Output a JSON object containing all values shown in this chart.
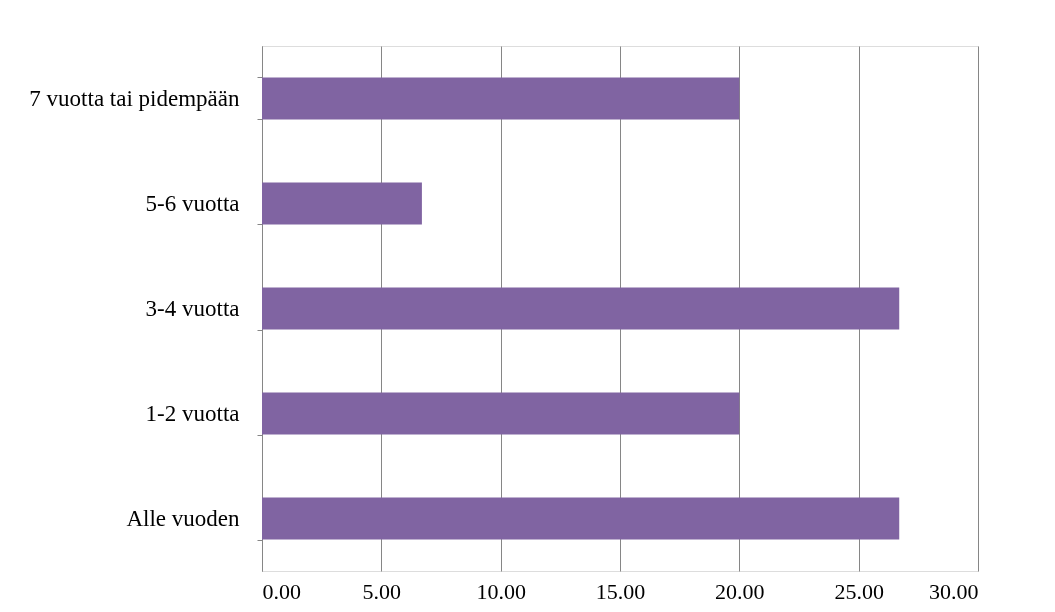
{
  "chart_data": {
    "type": "bar",
    "orientation": "horizontal",
    "categories": [
      "7 vuotta tai pidempään",
      "5-6 vuotta",
      "3-4 vuotta",
      "1-2 vuotta",
      "Alle vuoden"
    ],
    "values": [
      20,
      6.7,
      26.7,
      20,
      26.7
    ],
    "color": "#8064a2",
    "xlim": [
      0,
      30
    ],
    "xticks": [
      {
        "value": 0,
        "label": "0.00"
      },
      {
        "value": 5,
        "label": "5.00"
      },
      {
        "value": 10,
        "label": "10.00"
      },
      {
        "value": 15,
        "label": "15.00"
      },
      {
        "value": 20,
        "label": "20.00"
      },
      {
        "value": 25,
        "label": "25.00"
      },
      {
        "value": 30,
        "label": "30.00"
      }
    ],
    "grid": "x"
  }
}
